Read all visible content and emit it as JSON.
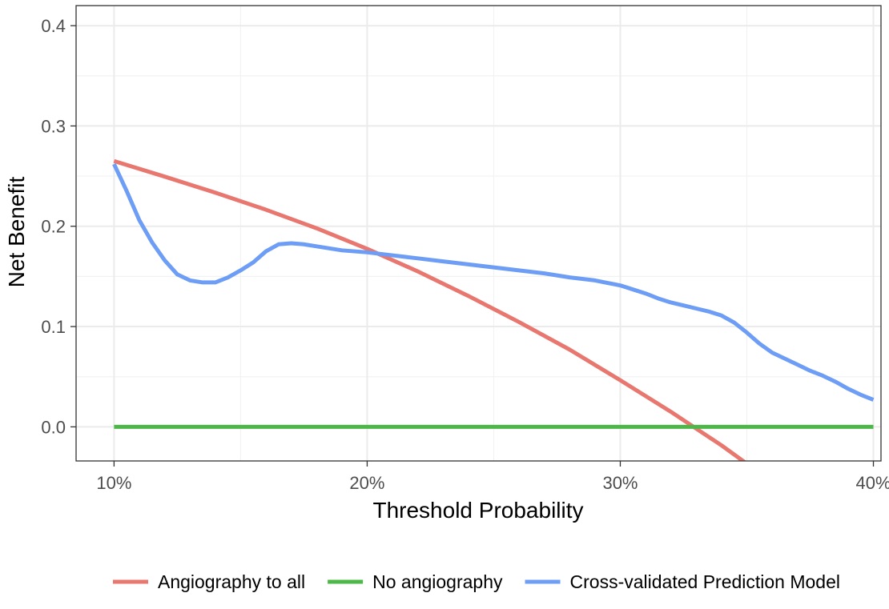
{
  "chart_data": {
    "type": "line",
    "title": "",
    "xlabel": "Threshold Probability",
    "ylabel": "Net Benefit",
    "xlim": [
      0.085,
      0.403
    ],
    "ylim": [
      -0.034,
      0.42
    ],
    "x_ticks": [
      0.1,
      0.2,
      0.3,
      0.4
    ],
    "x_tick_labels": [
      "10%",
      "20%",
      "30%",
      "40%"
    ],
    "y_ticks": [
      0.0,
      0.1,
      0.2,
      0.3,
      0.4
    ],
    "y_tick_labels": [
      "0.0",
      "0.1",
      "0.2",
      "0.3",
      "0.4"
    ],
    "grid": true,
    "legend_position": "bottom",
    "series": [
      {
        "name": "Angiography to all",
        "color": "#E8776F",
        "x": [
          0.1,
          0.12,
          0.14,
          0.16,
          0.18,
          0.2,
          0.22,
          0.24,
          0.26,
          0.28,
          0.3,
          0.32,
          0.34,
          0.36,
          0.3625
        ],
        "y": [
          0.265,
          0.2495,
          0.2335,
          0.2165,
          0.198,
          0.1775,
          0.155,
          0.1305,
          0.1045,
          0.077,
          0.0465,
          0.015,
          -0.0185,
          -0.055,
          -0.06
        ]
      },
      {
        "name": "No angiography",
        "color": "#4DB848",
        "x": [
          0.1,
          0.4
        ],
        "y": [
          0.0,
          0.0
        ]
      },
      {
        "name": "Cross-validated Prediction Model",
        "color": "#6D9DF5",
        "x": [
          0.1,
          0.105,
          0.11,
          0.115,
          0.12,
          0.125,
          0.13,
          0.135,
          0.14,
          0.145,
          0.15,
          0.155,
          0.16,
          0.165,
          0.17,
          0.175,
          0.18,
          0.19,
          0.2,
          0.21,
          0.22,
          0.23,
          0.24,
          0.25,
          0.26,
          0.27,
          0.28,
          0.29,
          0.3,
          0.305,
          0.31,
          0.315,
          0.32,
          0.325,
          0.33,
          0.335,
          0.34,
          0.345,
          0.35,
          0.355,
          0.36,
          0.365,
          0.37,
          0.375,
          0.38,
          0.385,
          0.39,
          0.395,
          0.4
        ],
        "y": [
          0.262,
          0.235,
          0.206,
          0.184,
          0.166,
          0.152,
          0.146,
          0.144,
          0.144,
          0.149,
          0.156,
          0.164,
          0.175,
          0.182,
          0.183,
          0.182,
          0.18,
          0.176,
          0.174,
          0.171,
          0.168,
          0.165,
          0.162,
          0.159,
          0.156,
          0.153,
          0.149,
          0.146,
          0.141,
          0.137,
          0.133,
          0.128,
          0.124,
          0.121,
          0.118,
          0.115,
          0.111,
          0.104,
          0.094,
          0.083,
          0.074,
          0.068,
          0.062,
          0.056,
          0.051,
          0.045,
          0.038,
          0.032,
          0.027
        ]
      }
    ]
  }
}
